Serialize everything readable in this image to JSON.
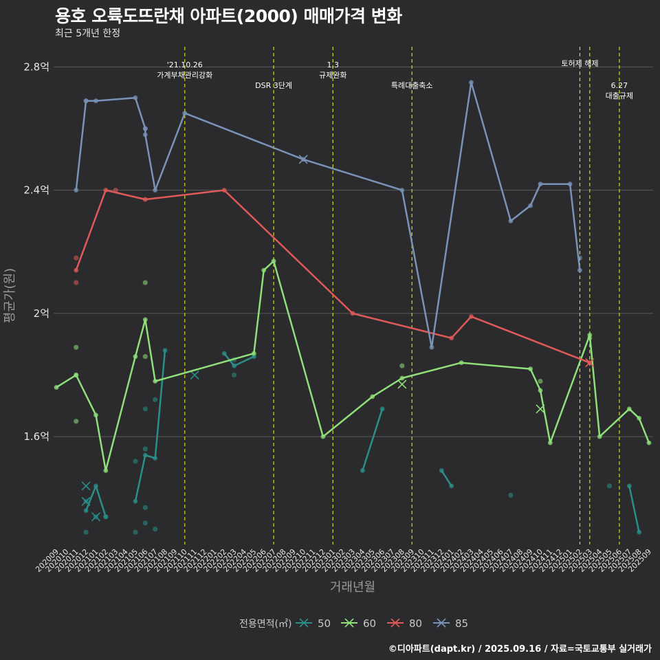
{
  "title": "용호 오륙도뜨란채 아파트(2000) 매매가격 변화",
  "subtitle": "최근 5개년 한정",
  "footer": "©디아파트(dapt.kr) / 2025.09.16 / 자료=국토교통부 실거래가",
  "chart_data": {
    "type": "line",
    "xlabel": "거래년월",
    "ylabel": "평균가(원)",
    "ylim": [
      1.25,
      2.87
    ],
    "x_categories": [
      "202009",
      "202010",
      "202011",
      "202012",
      "202101",
      "202102",
      "202103",
      "202104",
      "202105",
      "202106",
      "202107",
      "202108",
      "202109",
      "202110",
      "202111",
      "202112",
      "202201",
      "202202",
      "202203",
      "202204",
      "202205",
      "202206",
      "202207",
      "202208",
      "202209",
      "202210",
      "202211",
      "202212",
      "202301",
      "202302",
      "202303",
      "202304",
      "202305",
      "202306",
      "202307",
      "202308",
      "202309",
      "202310",
      "202311",
      "202312",
      "202401",
      "202402",
      "202403",
      "202404",
      "202405",
      "202406",
      "202407",
      "202408",
      "202409",
      "202410",
      "202411",
      "202412",
      "202501",
      "202502",
      "202503",
      "202504",
      "202505",
      "202506",
      "202507",
      "202508",
      "202509"
    ],
    "y_ticks": [
      {
        "value": 1.6,
        "label": "1.6억"
      },
      {
        "value": 2.0,
        "label": "2억"
      },
      {
        "value": 2.4,
        "label": "2.4억"
      },
      {
        "value": 2.8,
        "label": "2.8억"
      }
    ],
    "events": [
      {
        "x": 13,
        "lines": [
          "'21.10.26",
          "가계부채관리강화"
        ],
        "ly": 1
      },
      {
        "x": 22,
        "lines": [
          "DSR 3단계"
        ],
        "ly": 2
      },
      {
        "x": 28,
        "lines": [
          "1.3",
          "규제완화"
        ],
        "ly": 1
      },
      {
        "x": 36,
        "lines": [
          "특례대출축소"
        ],
        "ly": 2
      },
      {
        "x": 53,
        "lines": [
          "토허제 해제"
        ],
        "ly": 0
      },
      {
        "x": 54,
        "lines": [],
        "ly": 0
      },
      {
        "x": 57,
        "lines": [
          "6.27",
          "대출규제"
        ],
        "ly": 3
      }
    ],
    "legend": {
      "title": "전용면적(㎡)",
      "items": [
        "50",
        "60",
        "80",
        "85"
      ]
    },
    "series": [
      {
        "name": "50",
        "color": "#2a8f8a",
        "segments": [
          [
            [
              8,
              1.39
            ],
            [
              9,
              1.54
            ],
            [
              10,
              1.53
            ],
            [
              11,
              1.88
            ]
          ],
          [
            [
              17,
              1.87
            ],
            [
              18,
              1.83
            ],
            [
              20,
              1.86
            ]
          ],
          [
            [
              31,
              1.49
            ],
            [
              33,
              1.69
            ]
          ],
          [
            [
              39,
              1.49
            ],
            [
              40,
              1.44
            ]
          ],
          [
            [
              58,
              1.44
            ],
            [
              59,
              1.29
            ]
          ],
          [
            [
              3,
              1.36
            ],
            [
              4,
              1.44
            ],
            [
              5,
              1.34
            ]
          ]
        ],
        "points": [
          [
            3,
            1.29
          ],
          [
            3,
            1.39
          ],
          [
            4,
            1.34
          ],
          [
            5,
            1.34
          ],
          [
            8,
            1.29
          ],
          [
            8,
            1.52
          ],
          [
            9,
            1.32
          ],
          [
            9,
            1.37
          ],
          [
            9,
            1.56
          ],
          [
            9,
            1.69
          ],
          [
            10,
            1.3
          ],
          [
            10,
            1.72
          ],
          [
            18,
            1.85
          ],
          [
            18,
            1.8
          ],
          [
            46,
            1.41
          ],
          [
            56,
            1.44
          ]
        ],
        "crosses": [
          [
            3,
            1.39
          ],
          [
            3,
            1.44
          ],
          [
            4,
            1.34
          ],
          [
            14,
            1.8
          ]
        ]
      },
      {
        "name": "60",
        "color": "#8fe07a",
        "segments": [
          [
            [
              0,
              1.76
            ],
            [
              2,
              1.8
            ],
            [
              4,
              1.67
            ],
            [
              5,
              1.49
            ],
            [
              8,
              1.86
            ],
            [
              9,
              1.98
            ],
            [
              10,
              1.78
            ],
            [
              20,
              1.87
            ],
            [
              21,
              2.14
            ],
            [
              22,
              2.17
            ],
            [
              27,
              1.6
            ],
            [
              32,
              1.73
            ],
            [
              35,
              1.79
            ],
            [
              41,
              1.84
            ],
            [
              48,
              1.82
            ],
            [
              49,
              1.75
            ],
            [
              50,
              1.58
            ],
            [
              54,
              1.93
            ],
            [
              55,
              1.6
            ],
            [
              58,
              1.69
            ],
            [
              59,
              1.66
            ],
            [
              60,
              1.58
            ]
          ]
        ],
        "points": [
          [
            2,
            1.89
          ],
          [
            2,
            1.8
          ],
          [
            2,
            1.65
          ],
          [
            9,
            1.86
          ],
          [
            9,
            2.1
          ],
          [
            35,
            1.83
          ],
          [
            49,
            1.78
          ],
          [
            54,
            1.92
          ]
        ],
        "crosses": [
          [
            35,
            1.77
          ],
          [
            49,
            1.69
          ]
        ]
      },
      {
        "name": "80",
        "color": "#e05a5a",
        "segments": [
          [
            [
              2,
              2.14
            ],
            [
              5,
              2.4
            ],
            [
              9,
              2.37
            ],
            [
              17,
              2.4
            ],
            [
              30,
              2.0
            ],
            [
              40,
              1.92
            ],
            [
              42,
              1.99
            ],
            [
              54,
              1.84
            ]
          ]
        ],
        "points": [
          [
            2,
            2.18
          ],
          [
            2,
            2.1
          ],
          [
            6,
            2.4
          ]
        ],
        "crosses": [
          [
            54,
            1.84
          ]
        ]
      },
      {
        "name": "85",
        "color": "#7a93b8",
        "segments": [
          [
            [
              2,
              2.4
            ],
            [
              3,
              2.69
            ],
            [
              4,
              2.69
            ],
            [
              8,
              2.7
            ],
            [
              9,
              2.6
            ],
            [
              9,
              2.58
            ],
            [
              10,
              2.4
            ],
            [
              13,
              2.65
            ],
            [
              25,
              2.5
            ],
            [
              35,
              2.4
            ],
            [
              38,
              1.89
            ],
            [
              42,
              2.75
            ],
            [
              46,
              2.3
            ],
            [
              48,
              2.35
            ],
            [
              49,
              2.42
            ],
            [
              52,
              2.42
            ],
            [
              53,
              2.14
            ]
          ]
        ],
        "points": [
          [
            3,
            2.69
          ],
          [
            9,
            2.6
          ],
          [
            53,
            2.18
          ]
        ],
        "crosses": [
          [
            25,
            2.5
          ]
        ]
      }
    ]
  }
}
